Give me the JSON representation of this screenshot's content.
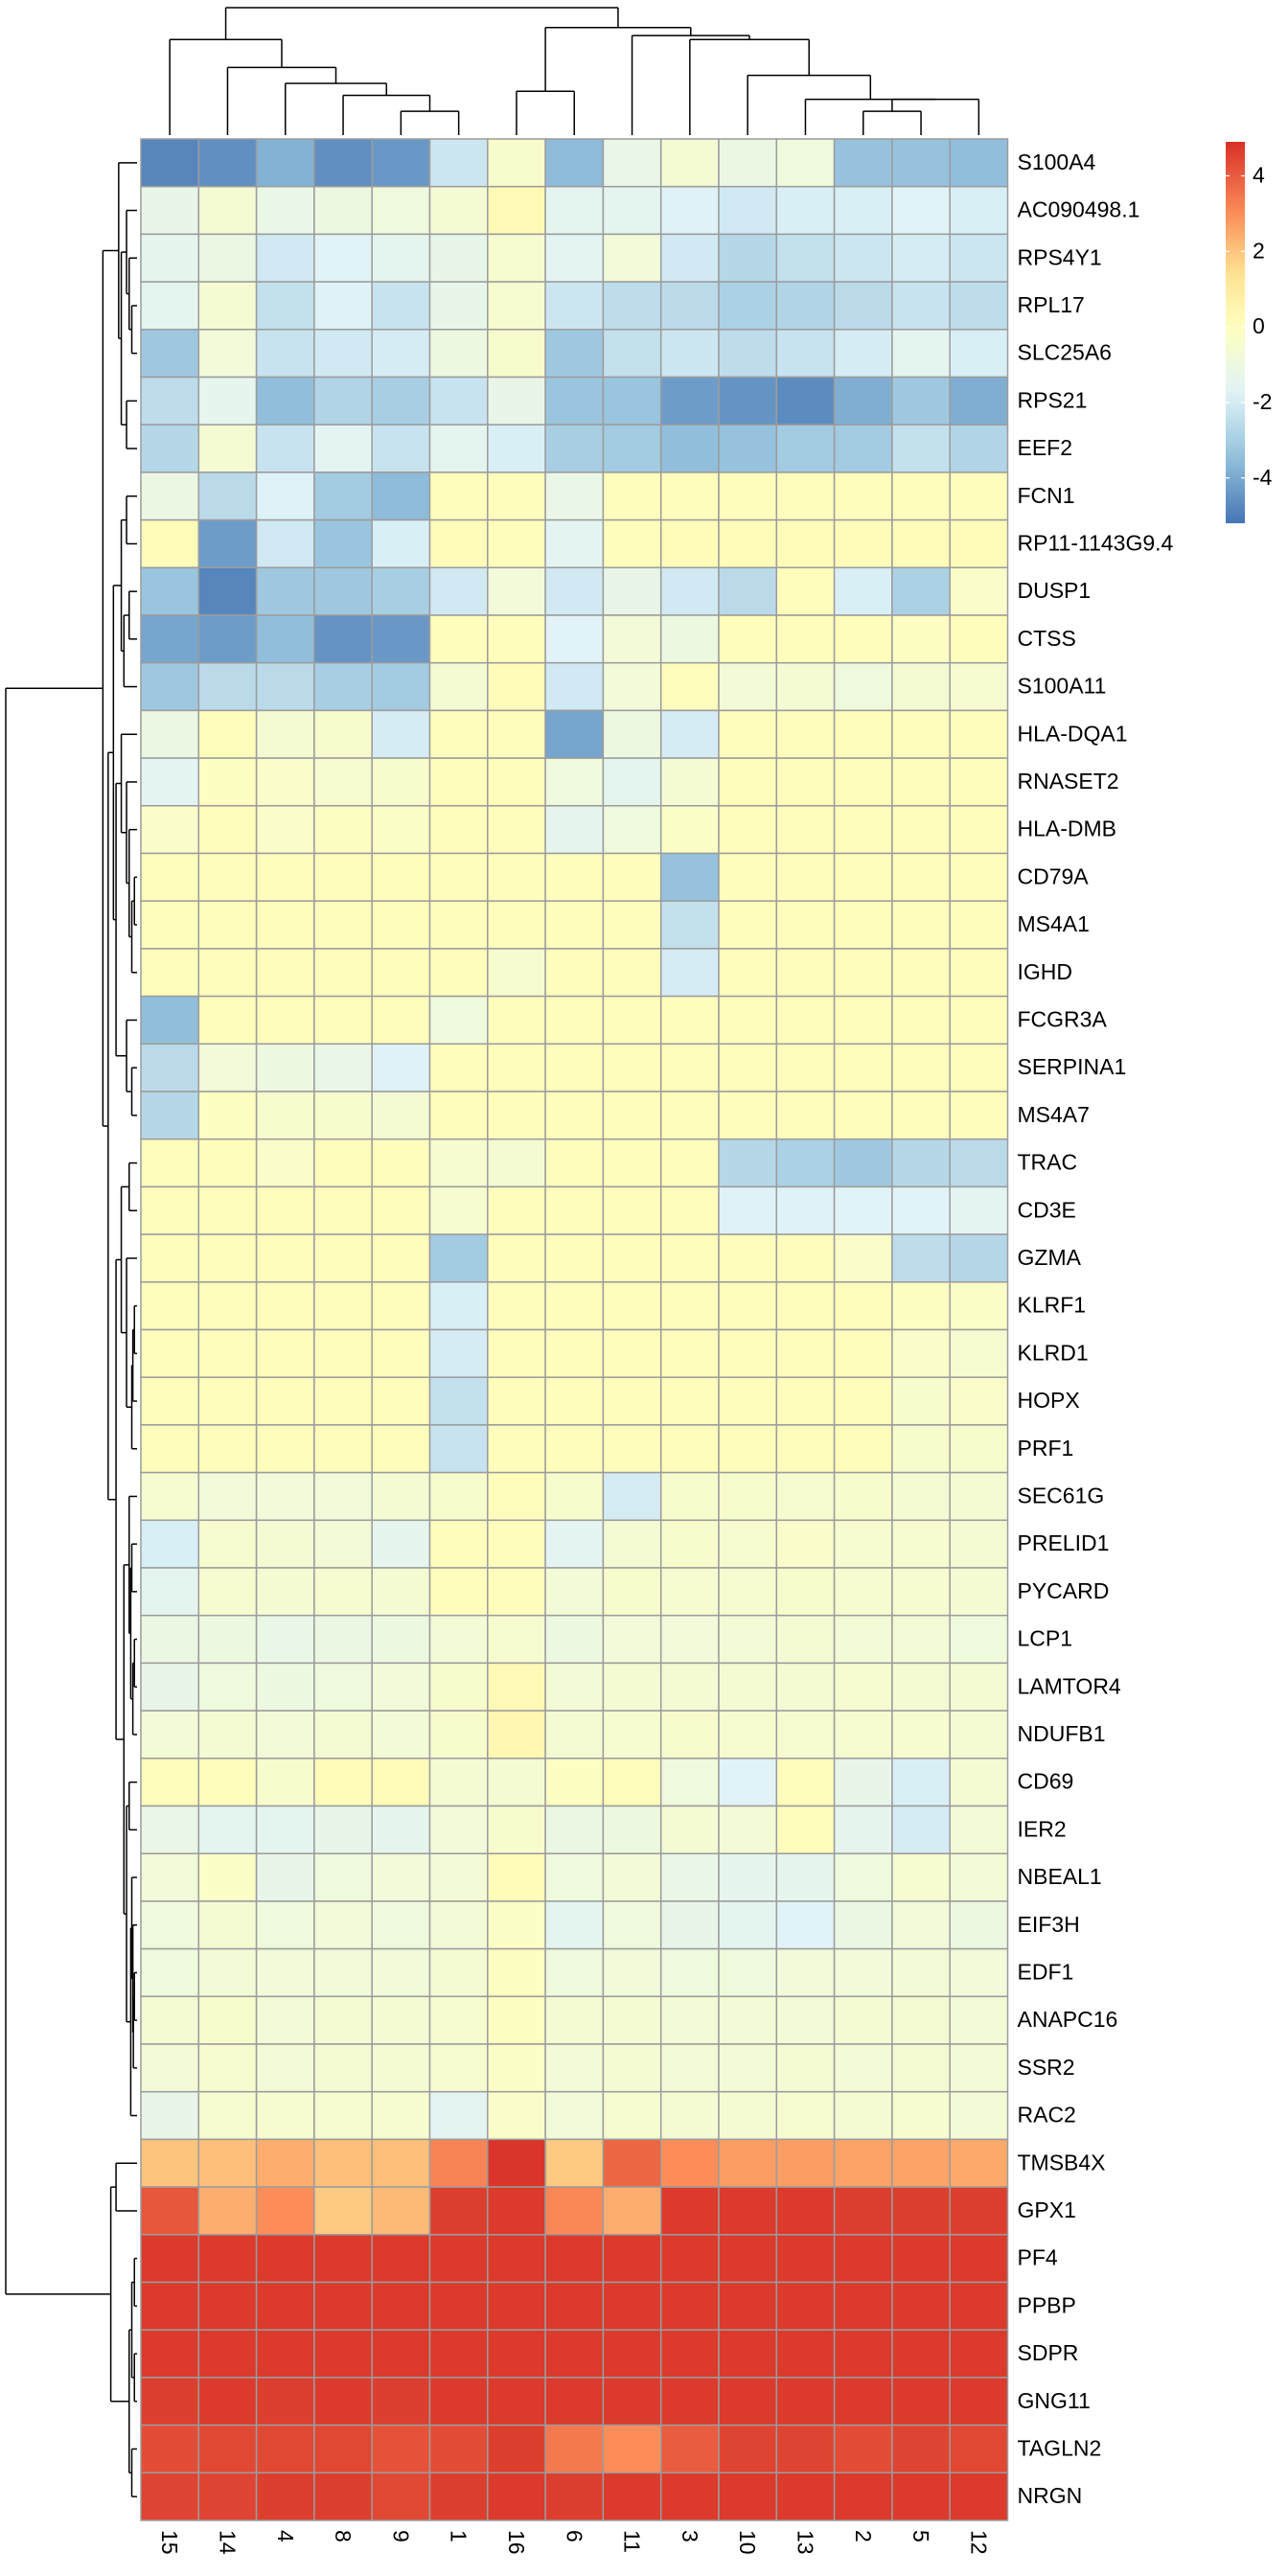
{
  "chart_data": {
    "type": "heatmap",
    "title": "",
    "xlabel": "",
    "ylabel": "",
    "color_scale": {
      "min": -5.2,
      "max": 4.9,
      "stops": [
        {
          "value": -5.2,
          "color": "#4575b4"
        },
        {
          "value": -3.5,
          "color": "#91bfdb"
        },
        {
          "value": -1.75,
          "color": "#e0f3f8"
        },
        {
          "value": 0,
          "color": "#ffffbf"
        },
        {
          "value": 1.5,
          "color": "#fee090"
        },
        {
          "value": 3,
          "color": "#fc8d59"
        },
        {
          "value": 4.9,
          "color": "#d73027"
        }
      ]
    },
    "legend": {
      "placement": "top-right",
      "ticks": [
        "4",
        "2",
        "0",
        "-2",
        "-4"
      ],
      "tick_values": [
        4,
        2,
        0,
        -2,
        -4
      ]
    },
    "columns": [
      "15",
      "14",
      "4",
      "8",
      "9",
      "1",
      "16",
      "6",
      "11",
      "3",
      "10",
      "13",
      "2",
      "5",
      "12"
    ],
    "rows": [
      "S100A4",
      "AC090498.1",
      "RPS4Y1",
      "RPL17",
      "SLC25A6",
      "RPS21",
      "EEF2",
      "FCN1",
      "RP11-1143G9.4",
      "DUSP1",
      "CTSS",
      "S100A11",
      "HLA-DQA1",
      "RNASET2",
      "HLA-DMB",
      "CD79A",
      "MS4A1",
      "IGHD",
      "FCGR3A",
      "SERPINA1",
      "MS4A7",
      "TRAC",
      "CD3E",
      "GZMA",
      "KLRF1",
      "KLRD1",
      "HOPX",
      "PRF1",
      "SEC61G",
      "PRELID1",
      "PYCARD",
      "LCP1",
      "LAMTOR4",
      "NDUFB1",
      "CD69",
      "IER2",
      "NBEAL1",
      "EIF3H",
      "EDF1",
      "ANAPC16",
      "SSR2",
      "RAC2",
      "TMSB4X",
      "GPX1",
      "PF4",
      "PPBP",
      "SDPR",
      "GNG11",
      "TAGLN2",
      "NRGN"
    ],
    "values": [
      [
        -4.8,
        -4.6,
        -3.8,
        -4.6,
        -4.4,
        -2.2,
        -0.4,
        -3.6,
        -1.2,
        -0.6,
        -1.1,
        -0.9,
        -3.4,
        -3.4,
        -3.5
      ],
      [
        -1.3,
        -0.6,
        -1.2,
        -1.0,
        -0.9,
        -0.6,
        0.3,
        -1.5,
        -1.5,
        -1.8,
        -2.1,
        -1.9,
        -1.9,
        -1.7,
        -1.9
      ],
      [
        -1.4,
        -1.1,
        -2.1,
        -1.7,
        -1.5,
        -1.3,
        -0.5,
        -1.6,
        -0.8,
        -2.1,
        -2.7,
        -2.4,
        -2.2,
        -2.0,
        -2.2
      ],
      [
        -1.5,
        -0.6,
        -2.4,
        -1.8,
        -2.3,
        -1.3,
        -0.5,
        -2.2,
        -2.5,
        -2.6,
        -2.9,
        -2.8,
        -2.6,
        -2.3,
        -2.5
      ],
      [
        -3.2,
        -0.8,
        -2.3,
        -2.1,
        -2.0,
        -1.0,
        -0.4,
        -3.2,
        -2.4,
        -2.2,
        -2.5,
        -2.3,
        -2.0,
        -1.5,
        -1.9
      ],
      [
        -2.5,
        -1.4,
        -3.5,
        -2.8,
        -3.0,
        -2.3,
        -1.3,
        -3.3,
        -3.3,
        -4.3,
        -4.5,
        -4.7,
        -3.9,
        -3.2,
        -3.9
      ],
      [
        -2.7,
        -0.6,
        -2.3,
        -1.6,
        -2.3,
        -1.5,
        -1.9,
        -3.0,
        -3.1,
        -3.5,
        -3.4,
        -3.1,
        -3.1,
        -2.4,
        -2.8
      ],
      [
        -1.1,
        -2.6,
        -1.8,
        -3.1,
        -3.6,
        0.1,
        0.1,
        -1.2,
        0.1,
        0.1,
        0.1,
        0.1,
        0.1,
        0.1,
        0.1
      ],
      [
        0.2,
        -4.3,
        -2.1,
        -3.3,
        -1.9,
        0.2,
        0.1,
        -1.6,
        0.1,
        0.2,
        0.2,
        0.2,
        0.2,
        0.2,
        0.2
      ],
      [
        -3.3,
        -4.8,
        -3.2,
        -3.2,
        -3.0,
        -2.1,
        -0.8,
        -2.1,
        -1.3,
        -2.1,
        -2.6,
        0.1,
        -1.9,
        -2.9,
        -0.3
      ],
      [
        -4.1,
        -4.3,
        -3.5,
        -4.5,
        -4.4,
        0.1,
        0.1,
        -1.7,
        -0.7,
        -1.0,
        0.1,
        0.1,
        0.1,
        -0.1,
        0.1
      ],
      [
        -3.2,
        -2.6,
        -2.6,
        -3.0,
        -3.1,
        -0.6,
        0.2,
        -2.1,
        -0.8,
        0.1,
        -0.7,
        -0.6,
        -0.9,
        -0.6,
        -0.5
      ],
      [
        -1.1,
        0.1,
        -0.6,
        -0.4,
        -2.0,
        0.1,
        0.1,
        -4.1,
        -1.0,
        -2.0,
        0.1,
        0.1,
        0.1,
        0.1,
        0.1
      ],
      [
        -1.6,
        -0.1,
        -0.3,
        -0.5,
        -0.4,
        0.1,
        0.1,
        -0.9,
        -1.5,
        -0.6,
        0.1,
        0.1,
        0.1,
        0.1,
        0.1
      ],
      [
        -0.3,
        0.1,
        -0.3,
        -0.1,
        -0.2,
        0.1,
        0.1,
        -1.4,
        -0.9,
        -0.2,
        0.1,
        0.1,
        0.1,
        0.1,
        0.1
      ],
      [
        0.1,
        0.1,
        0.1,
        0.1,
        0.1,
        0.1,
        0.1,
        0.1,
        0.1,
        -3.4,
        0.1,
        0.1,
        0.1,
        0.1,
        0.1
      ],
      [
        0.1,
        0.1,
        0.1,
        0.1,
        0.1,
        0.1,
        0.1,
        0.1,
        0.1,
        -2.4,
        0.1,
        0.1,
        0.1,
        0.1,
        0.1
      ],
      [
        0.1,
        0.1,
        0.1,
        0.1,
        0.1,
        0.1,
        -0.5,
        0.1,
        0.1,
        -2.0,
        0.1,
        0.1,
        0.1,
        0.1,
        0.1
      ],
      [
        -3.5,
        0.1,
        0.1,
        0.1,
        0.1,
        -0.9,
        0.1,
        0.1,
        0.1,
        0.1,
        0.1,
        0.1,
        0.1,
        0.1,
        0.1
      ],
      [
        -2.6,
        -0.8,
        -1.0,
        -1.2,
        -1.8,
        0.1,
        0.1,
        0.1,
        0.1,
        0.1,
        0.1,
        0.1,
        0.1,
        0.1,
        0.1
      ],
      [
        -2.7,
        -0.1,
        -0.4,
        -0.4,
        -0.6,
        0.1,
        0.1,
        0.1,
        0.1,
        0.1,
        0.1,
        0.1,
        0.1,
        0.1,
        0.1
      ],
      [
        0.1,
        0.1,
        -0.3,
        0.1,
        0.1,
        -0.5,
        -0.6,
        0.1,
        0.1,
        0.1,
        -2.7,
        -2.9,
        -3.2,
        -2.7,
        -2.6
      ],
      [
        0.1,
        0.1,
        0.1,
        0.1,
        0.1,
        -0.5,
        0.1,
        0.1,
        0.1,
        0.1,
        -1.8,
        -1.8,
        -1.7,
        -1.7,
        -1.6
      ],
      [
        0.1,
        0.1,
        0.1,
        0.1,
        0.1,
        -3.1,
        0.1,
        0.1,
        0.1,
        0.1,
        0.1,
        0.1,
        -0.3,
        -2.5,
        -2.7
      ],
      [
        0.1,
        0.1,
        0.1,
        0.1,
        0.1,
        -1.9,
        0.1,
        0.1,
        0.1,
        0.1,
        0.1,
        0.1,
        0.1,
        -0.1,
        -0.2
      ],
      [
        0.1,
        0.1,
        0.1,
        0.1,
        0.1,
        -2.0,
        0.1,
        0.1,
        0.1,
        0.1,
        0.1,
        0.1,
        0.1,
        -0.3,
        -0.5
      ],
      [
        0.1,
        0.1,
        0.1,
        0.1,
        0.1,
        -2.4,
        0.1,
        0.1,
        0.1,
        0.1,
        0.1,
        0.1,
        0.1,
        -0.4,
        -0.3
      ],
      [
        0.1,
        0.1,
        0.1,
        0.1,
        0.1,
        -2.3,
        0.1,
        0.1,
        0.1,
        0.1,
        0.1,
        0.1,
        0.1,
        -0.4,
        -0.4
      ],
      [
        -0.5,
        -0.8,
        -0.8,
        -0.8,
        -0.6,
        -0.4,
        0.1,
        -0.4,
        -2.0,
        -0.4,
        -0.4,
        -0.5,
        -0.4,
        -0.6,
        -0.6
      ],
      [
        -1.9,
        -0.5,
        -0.6,
        -0.7,
        -1.4,
        0.1,
        0.1,
        -1.6,
        -0.6,
        -0.4,
        -0.5,
        -0.3,
        -0.5,
        -0.5,
        -0.6
      ],
      [
        -1.5,
        -0.5,
        -0.6,
        -0.5,
        -0.6,
        0.1,
        0.1,
        -0.7,
        -0.4,
        -0.5,
        -0.5,
        -0.4,
        -0.5,
        -0.5,
        -0.6
      ],
      [
        -1.1,
        -1.0,
        -1.2,
        -1.1,
        -1.0,
        -0.7,
        -0.5,
        -1.0,
        -0.8,
        -0.8,
        -0.7,
        -0.6,
        -0.7,
        -0.7,
        -0.9
      ],
      [
        -1.3,
        -0.9,
        -1.0,
        -0.9,
        -0.8,
        -0.4,
        0.3,
        -0.7,
        -0.6,
        -0.6,
        -0.6,
        -0.6,
        -0.5,
        -0.6,
        -0.6
      ],
      [
        -0.7,
        -0.6,
        -0.7,
        -0.6,
        -0.7,
        -0.4,
        0.4,
        -0.6,
        -0.5,
        -0.4,
        -0.5,
        -0.5,
        -0.5,
        -0.5,
        -0.6
      ],
      [
        0.1,
        0.1,
        -0.4,
        0.2,
        0.2,
        -0.6,
        -0.6,
        -0.1,
        0.1,
        -0.9,
        -1.7,
        0.1,
        -1.3,
        -1.9,
        -0.6
      ],
      [
        -1.2,
        -1.5,
        -1.5,
        -1.3,
        -1.4,
        -0.8,
        -0.4,
        -1.1,
        -1.0,
        -0.6,
        -0.7,
        0.1,
        -1.4,
        -2.0,
        -0.7
      ],
      [
        -0.8,
        -0.2,
        -1.3,
        -0.9,
        -0.8,
        -0.7,
        0.2,
        -0.9,
        -0.7,
        -1.2,
        -1.4,
        -1.4,
        -0.9,
        -0.5,
        -0.7
      ],
      [
        -0.9,
        -0.6,
        -0.9,
        -0.8,
        -0.9,
        -0.7,
        -0.2,
        -1.5,
        -0.9,
        -1.3,
        -1.5,
        -1.7,
        -1.1,
        -0.8,
        -1.0
      ],
      [
        -0.9,
        -0.7,
        -0.8,
        -0.8,
        -0.8,
        -0.6,
        -0.1,
        -0.9,
        -0.8,
        -0.9,
        -0.9,
        -0.8,
        -0.8,
        -0.7,
        -0.8
      ],
      [
        -0.6,
        -0.4,
        -0.7,
        -0.6,
        -0.6,
        -0.5,
        -0.1,
        -0.6,
        -0.6,
        -0.7,
        -0.7,
        -0.7,
        -0.6,
        -0.6,
        -0.7
      ],
      [
        -0.7,
        -0.5,
        -0.7,
        -0.6,
        -0.6,
        -0.5,
        -0.2,
        -0.7,
        -0.6,
        -0.7,
        -0.7,
        -0.6,
        -0.7,
        -0.6,
        -0.7
      ],
      [
        -1.3,
        -0.5,
        -0.5,
        -0.5,
        -0.5,
        -1.6,
        -0.3,
        -0.8,
        -0.5,
        -0.6,
        -0.6,
        -0.5,
        -0.6,
        -0.5,
        -0.7
      ],
      [
        2.0,
        2.1,
        2.4,
        2.1,
        2.1,
        3.2,
        4.8,
        1.9,
        3.8,
        3.0,
        2.7,
        2.7,
        2.6,
        2.6,
        2.5
      ],
      [
        4.1,
        2.4,
        3.0,
        1.9,
        2.2,
        4.6,
        4.7,
        3.1,
        2.4,
        4.7,
        4.7,
        4.7,
        4.6,
        4.6,
        4.6
      ],
      [
        4.7,
        4.7,
        4.7,
        4.7,
        4.7,
        4.7,
        4.7,
        4.7,
        4.7,
        4.7,
        4.7,
        4.7,
        4.7,
        4.7,
        4.7
      ],
      [
        4.7,
        4.7,
        4.7,
        4.7,
        4.7,
        4.7,
        4.7,
        4.7,
        4.7,
        4.7,
        4.7,
        4.7,
        4.7,
        4.7,
        4.7
      ],
      [
        4.7,
        4.7,
        4.7,
        4.7,
        4.7,
        4.7,
        4.7,
        4.7,
        4.7,
        4.7,
        4.7,
        4.7,
        4.7,
        4.7,
        4.7
      ],
      [
        4.6,
        4.7,
        4.6,
        4.7,
        4.6,
        4.7,
        4.7,
        4.7,
        4.7,
        4.7,
        4.7,
        4.7,
        4.7,
        4.7,
        4.7
      ],
      [
        4.3,
        4.4,
        4.4,
        4.4,
        4.2,
        4.3,
        4.6,
        3.4,
        3.0,
        4.0,
        4.5,
        4.5,
        4.3,
        4.5,
        4.4
      ],
      [
        4.5,
        4.5,
        4.6,
        4.6,
        4.4,
        4.6,
        4.7,
        4.6,
        4.7,
        4.7,
        4.7,
        4.7,
        4.7,
        4.7,
        4.7
      ]
    ],
    "col_dendrogram": [
      [
        4,
        5,
        0.6
      ],
      [
        3,
        15,
        1.0
      ],
      [
        2,
        16,
        1.3
      ],
      [
        1,
        17,
        1.7
      ],
      [
        0,
        18,
        2.4
      ],
      [
        6,
        7,
        1.1
      ],
      [
        12,
        13,
        0.6
      ],
      [
        14,
        21,
        0.9
      ],
      [
        11,
        22,
        0.9
      ],
      [
        10,
        23,
        1.5
      ],
      [
        9,
        24,
        2.4
      ],
      [
        8,
        25,
        2.5
      ],
      [
        20,
        26,
        2.7
      ],
      [
        19,
        27,
        3.2
      ]
    ],
    "row_dendrogram": [
      [
        3,
        4,
        0.1
      ],
      [
        2,
        50,
        0.15
      ],
      [
        1,
        51,
        0.2
      ],
      [
        5,
        6,
        0.2
      ],
      [
        52,
        53,
        0.3
      ],
      [
        0,
        54,
        0.35
      ],
      [
        15,
        16,
        0.05
      ],
      [
        56,
        17,
        0.1
      ],
      [
        14,
        57,
        0.15
      ],
      [
        13,
        58,
        0.2
      ],
      [
        12,
        59,
        0.3
      ],
      [
        19,
        20,
        0.1
      ],
      [
        18,
        61,
        0.2
      ],
      [
        60,
        62,
        0.4
      ],
      [
        7,
        8,
        0.2
      ],
      [
        9,
        10,
        0.15
      ],
      [
        65,
        11,
        0.25
      ],
      [
        64,
        66,
        0.3
      ],
      [
        63,
        67,
        0.45
      ],
      [
        24,
        25,
        0.05
      ],
      [
        69,
        26,
        0.08
      ],
      [
        70,
        27,
        0.1
      ],
      [
        23,
        71,
        0.2
      ],
      [
        21,
        22,
        0.15
      ],
      [
        72,
        73,
        0.3
      ],
      [
        31,
        32,
        0.05
      ],
      [
        75,
        33,
        0.08
      ],
      [
        29,
        30,
        0.1
      ],
      [
        76,
        77,
        0.12
      ],
      [
        28,
        78,
        0.15
      ],
      [
        38,
        39,
        0.05
      ],
      [
        80,
        40,
        0.07
      ],
      [
        37,
        81,
        0.08
      ],
      [
        36,
        82,
        0.1
      ],
      [
        83,
        41,
        0.12
      ],
      [
        34,
        35,
        0.15
      ],
      [
        84,
        85,
        0.2
      ],
      [
        79,
        86,
        0.25
      ],
      [
        74,
        87,
        0.4
      ],
      [
        68,
        88,
        0.55
      ],
      [
        55,
        89,
        0.65
      ],
      [
        44,
        45,
        0.05
      ],
      [
        46,
        47,
        0.05
      ],
      [
        91,
        92,
        0.1
      ],
      [
        48,
        49,
        0.1
      ],
      [
        93,
        94,
        0.15
      ],
      [
        42,
        43,
        0.4
      ],
      [
        95,
        96,
        0.5
      ],
      [
        90,
        97,
        2.5
      ]
    ]
  }
}
